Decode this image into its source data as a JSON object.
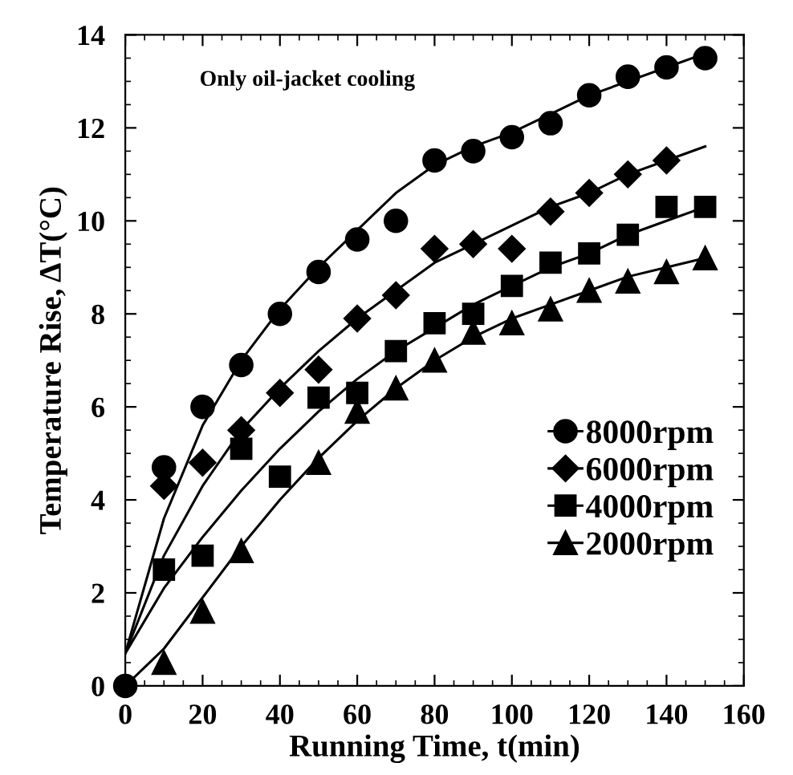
{
  "chart_data": {
    "type": "scatter",
    "xlabel": "Running Time, t(min)",
    "ylabel": "Temperature Rise, ΔT(°C)",
    "annotations": [
      "Only oil-jacket cooling"
    ],
    "xlim": [
      0,
      160
    ],
    "xticks": [
      0,
      20,
      40,
      60,
      80,
      100,
      120,
      140,
      160
    ],
    "ylim": [
      0,
      14
    ],
    "yticks": [
      0,
      2,
      4,
      6,
      8,
      10,
      12,
      14
    ],
    "grid": false,
    "legend": "right",
    "series": [
      {
        "name": "8000rpm",
        "marker": "circle",
        "color": "#000000",
        "x": [
          0,
          10,
          20,
          30,
          40,
          50,
          60,
          70,
          80,
          90,
          100,
          110,
          120,
          130,
          140,
          150
        ],
        "values": [
          0,
          4.7,
          6.0,
          6.9,
          8.0,
          8.9,
          9.6,
          10.0,
          11.3,
          11.5,
          11.8,
          12.1,
          12.7,
          13.1,
          13.3,
          13.5
        ]
      },
      {
        "name": "6000rpm",
        "marker": "diamond",
        "color": "#000000",
        "x": [
          10,
          20,
          30,
          40,
          50,
          60,
          70,
          80,
          90,
          100,
          110,
          120,
          130,
          140
        ],
        "values": [
          4.3,
          4.8,
          5.5,
          6.3,
          6.8,
          7.9,
          8.4,
          9.4,
          9.5,
          9.4,
          10.2,
          10.6,
          11.0,
          11.3
        ]
      },
      {
        "name": "4000rpm",
        "marker": "square",
        "color": "#000000",
        "x": [
          10,
          20,
          30,
          40,
          50,
          60,
          70,
          80,
          90,
          100,
          110,
          120,
          130,
          140,
          150
        ],
        "values": [
          2.5,
          2.8,
          5.1,
          4.5,
          6.2,
          6.3,
          7.2,
          7.8,
          8.0,
          8.6,
          9.1,
          9.3,
          9.7,
          10.3,
          10.3
        ]
      },
      {
        "name": "2000rpm",
        "marker": "triangle",
        "color": "#000000",
        "x": [
          10,
          20,
          30,
          40,
          50,
          60,
          70,
          80,
          90,
          100,
          110,
          120,
          130,
          140,
          150
        ],
        "values": [
          0.5,
          1.6,
          2.9,
          null,
          4.8,
          5.9,
          6.4,
          7.0,
          7.6,
          7.8,
          8.1,
          8.5,
          8.7,
          8.9,
          9.2
        ]
      },
      {
        "type": "line",
        "color": "#000000",
        "x": [
          0,
          10,
          20,
          30,
          40,
          50,
          60,
          70,
          80,
          90,
          100,
          110,
          120,
          130,
          140,
          150
        ],
        "values": [
          0.7,
          3.6,
          5.6,
          7.0,
          8.1,
          9.0,
          9.8,
          10.6,
          11.2,
          11.6,
          11.9,
          12.3,
          12.7,
          13.0,
          13.3,
          13.6
        ]
      },
      {
        "type": "line",
        "color": "#000000",
        "x": [
          0,
          10,
          20,
          30,
          40,
          50,
          60,
          70,
          80,
          90,
          100,
          110,
          120,
          130,
          140,
          150
        ],
        "values": [
          0.7,
          2.8,
          4.3,
          5.5,
          6.4,
          7.2,
          7.9,
          8.5,
          9.1,
          9.5,
          9.9,
          10.3,
          10.6,
          11.0,
          11.3,
          11.6
        ]
      },
      {
        "type": "line",
        "color": "#000000",
        "x": [
          0,
          10,
          20,
          30,
          40,
          50,
          60,
          70,
          80,
          90,
          100,
          110,
          120,
          130,
          140,
          150
        ],
        "values": [
          0.7,
          2.1,
          3.2,
          4.2,
          5.1,
          5.9,
          6.6,
          7.2,
          7.7,
          8.2,
          8.6,
          9.0,
          9.3,
          9.7,
          10.0,
          10.3
        ]
      },
      {
        "type": "line",
        "color": "#000000",
        "x": [
          0,
          10,
          20,
          30,
          40,
          50,
          60,
          70,
          80,
          90,
          100,
          110,
          120,
          130,
          140,
          150
        ],
        "values": [
          0,
          0.8,
          1.9,
          3.0,
          4.0,
          4.9,
          5.7,
          6.4,
          7.0,
          7.5,
          7.9,
          8.2,
          8.5,
          8.8,
          9.0,
          9.2
        ]
      }
    ]
  }
}
